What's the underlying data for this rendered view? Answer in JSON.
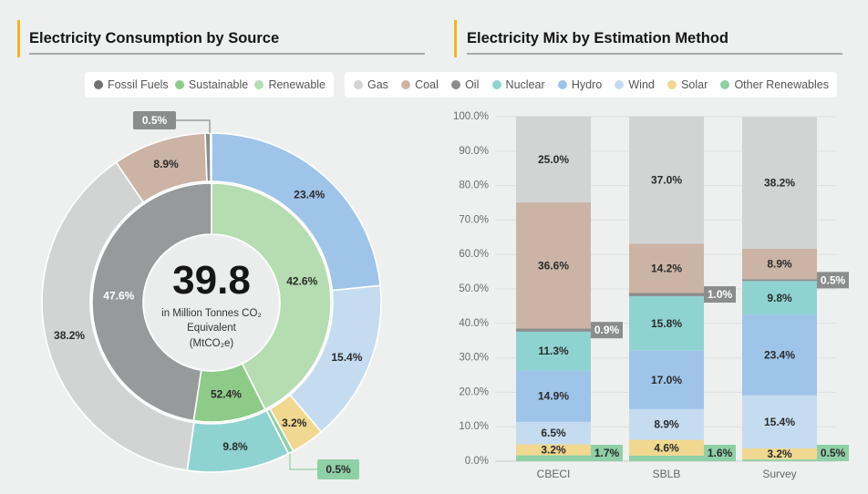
{
  "left_panel": {
    "title": "Electricity Consumption by Source",
    "legend": [
      {
        "label": "Fossil Fuels",
        "color": "#6f7070"
      },
      {
        "label": "Sustainable",
        "color": "#8ecb88"
      },
      {
        "label": "Renewable",
        "color": "#b6dcb1"
      }
    ]
  },
  "right_panel": {
    "title": "Electricity Mix by Estimation Method",
    "legend": [
      {
        "label": "Gas",
        "color": "#d2d3d3"
      },
      {
        "label": "Coal",
        "color": "#cbb4a5"
      },
      {
        "label": "Oil",
        "color": "#8b8d8d"
      },
      {
        "label": "Nuclear",
        "color": "#8fd3d1"
      },
      {
        "label": "Hydro",
        "color": "#9fc4e9"
      },
      {
        "label": "Wind",
        "color": "#c5dcf0"
      },
      {
        "label": "Solar",
        "color": "#f0d890"
      },
      {
        "label": "Other Renewables",
        "color": "#8fd0a6"
      }
    ]
  },
  "chart_data": [
    {
      "type": "pie",
      "variant": "donut",
      "title": "Electricity Consumption by Source",
      "start": "top",
      "direction": "clockwise",
      "center": {
        "value": "39.8",
        "unit_lines": [
          "in Million Tonnes CO₂",
          "Equivalent",
          "(MtCO₂e)"
        ]
      },
      "rings": [
        {
          "name": "inner",
          "slices": [
            {
              "name": "Renewable",
              "value": 42.6,
              "label": "42.6%",
              "color": "#b6dcb1"
            },
            {
              "name": "Sustainable",
              "value": 9.8,
              "label": "52.4%",
              "color": "#8ecb88"
            },
            {
              "name": "Fossil Fuels",
              "value": 47.6,
              "label": "47.6%",
              "color": "#97999a",
              "label_color": "#ffffff"
            }
          ]
        },
        {
          "name": "outer",
          "slices": [
            {
              "name": "Hydro",
              "value": 23.4,
              "label": "23.4%",
              "color": "#9fc4e9"
            },
            {
              "name": "Wind",
              "value": 15.4,
              "label": "15.4%",
              "color": "#c5dcf0"
            },
            {
              "name": "Solar",
              "value": 3.2,
              "label": "3.2%",
              "color": "#f0d890"
            },
            {
              "name": "Other Renewables",
              "value": 0.5,
              "label": "0.5%",
              "color": "#8fd0a6",
              "callout": true
            },
            {
              "name": "Nuclear",
              "value": 9.8,
              "label": "9.8%",
              "color": "#8fd3d1"
            },
            {
              "name": "Gas",
              "value": 38.2,
              "label": "38.2%",
              "color": "#d2d3d3"
            },
            {
              "name": "Coal",
              "value": 8.9,
              "label": "8.9%",
              "color": "#cbb4a5"
            },
            {
              "name": "Oil",
              "value": 0.5,
              "label": "0.5%",
              "color": "#8b8d8d",
              "callout": true
            }
          ]
        }
      ]
    },
    {
      "type": "bar",
      "stacked": true,
      "title": "Electricity Mix by Estimation Method",
      "xlabel": "",
      "ylabel": "",
      "categories": [
        "CBECI",
        "SBLB",
        "Survey"
      ],
      "ylim": [
        0,
        100
      ],
      "yticks": [
        "0.0%",
        "10.0%",
        "20.0%",
        "30.0%",
        "40.0%",
        "50.0%",
        "60.0%",
        "70.0%",
        "80.0%",
        "90.0%",
        "100.0%"
      ],
      "grid": true,
      "series": [
        {
          "name": "Other Renewables",
          "values": [
            1.7,
            1.6,
            0.5
          ],
          "labels": [
            "1.7%",
            "1.6%",
            "0.5%"
          ],
          "color": "#8fd0a6",
          "callout": true
        },
        {
          "name": "Solar",
          "values": [
            3.2,
            4.6,
            3.2
          ],
          "labels": [
            "3.2%",
            "4.6%",
            "3.2%"
          ],
          "color": "#f0d890"
        },
        {
          "name": "Wind",
          "values": [
            6.5,
            8.9,
            15.4
          ],
          "labels": [
            "6.5%",
            "8.9%",
            "15.4%"
          ],
          "color": "#c5dcf0"
        },
        {
          "name": "Hydro",
          "values": [
            14.9,
            17.0,
            23.4
          ],
          "labels": [
            "14.9%",
            "17.0%",
            "23.4%"
          ],
          "color": "#9fc4e9"
        },
        {
          "name": "Nuclear",
          "values": [
            11.3,
            15.8,
            9.8
          ],
          "labels": [
            "11.3%",
            "15.8%",
            "9.8%"
          ],
          "color": "#8fd3d1"
        },
        {
          "name": "Oil",
          "values": [
            0.9,
            1.0,
            0.5
          ],
          "labels": [
            "0.9%",
            "1.0%",
            "0.5%"
          ],
          "color": "#8b8d8d",
          "callout": true,
          "label_color": "#ffffff"
        },
        {
          "name": "Coal",
          "values": [
            36.6,
            14.2,
            8.9
          ],
          "labels": [
            "36.6%",
            "14.2%",
            "8.9%"
          ],
          "color": "#cbb4a5"
        },
        {
          "name": "Gas",
          "values": [
            25.0,
            37.0,
            38.2
          ],
          "labels": [
            "25.0%",
            "37.0%",
            "38.2%"
          ],
          "color": "#d2d3d3"
        }
      ]
    }
  ]
}
